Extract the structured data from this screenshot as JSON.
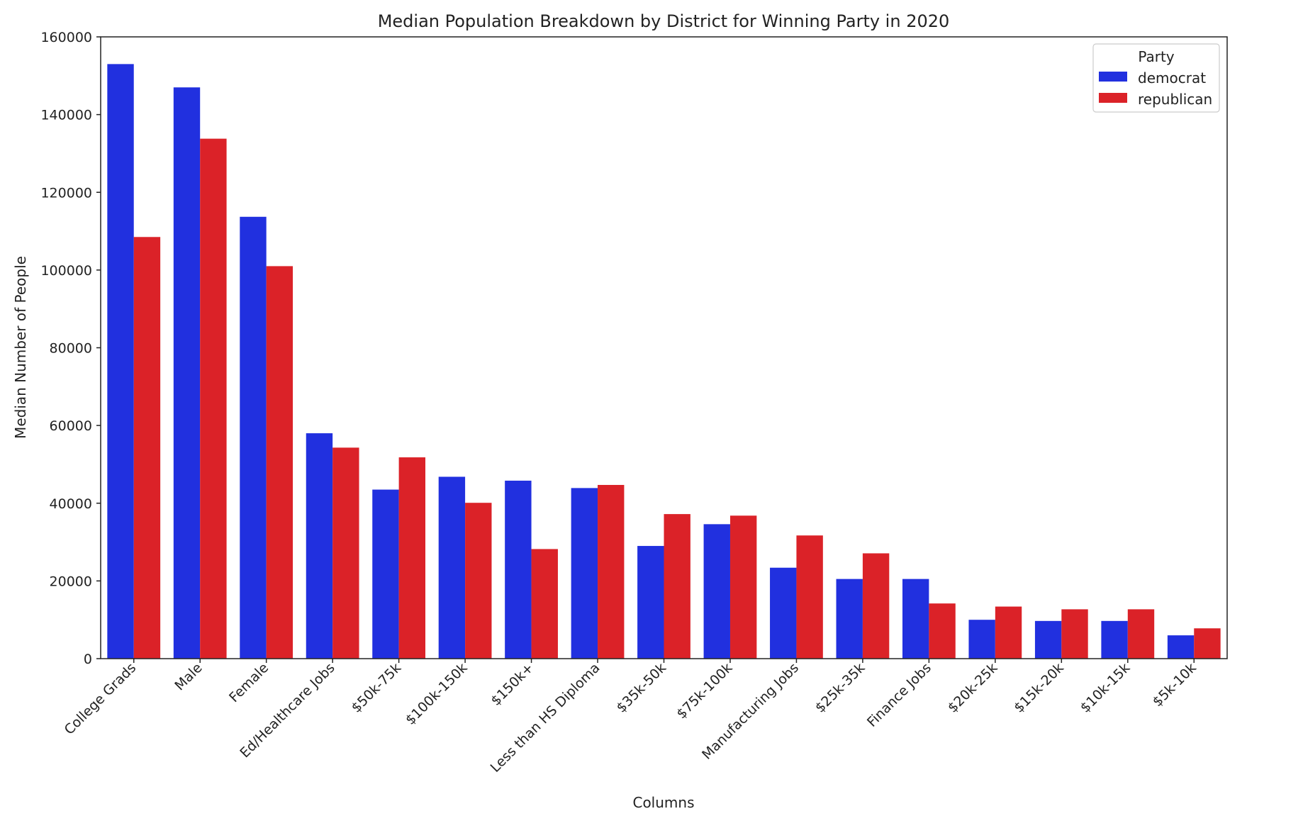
{
  "chart_data": {
    "type": "bar",
    "title": "Median Population Breakdown by District for Winning Party in 2020",
    "xlabel": "Columns",
    "ylabel": "Median Number of People",
    "ylim": [
      0,
      160000
    ],
    "yticks": [
      0,
      20000,
      40000,
      60000,
      80000,
      100000,
      120000,
      140000,
      160000
    ],
    "grid": false,
    "legend": {
      "title": "Party",
      "position": "top-right"
    },
    "categories": [
      "College Grads",
      "Male",
      "Female",
      "Ed/Healthcare Jobs",
      "$50k-75k",
      "$100k-150k",
      "$150k+",
      "Less than HS Diploma",
      "$35k-50k",
      "$75k-100k",
      "Manufacturing Jobs",
      "$25k-35k",
      "Finance Jobs",
      "$20k-25k",
      "$15k-20k",
      "$10k-15k",
      "$5k-10k"
    ],
    "series": [
      {
        "name": "democrat",
        "color": "#2130df",
        "values": [
          153000,
          147000,
          113700,
          58000,
          43500,
          46800,
          45800,
          43900,
          29000,
          34600,
          23400,
          20500,
          20500,
          10000,
          9700,
          9700,
          6000
        ]
      },
      {
        "name": "republican",
        "color": "#db2228",
        "values": [
          108500,
          133800,
          101000,
          54300,
          51800,
          40100,
          28200,
          44700,
          37200,
          36800,
          31700,
          27100,
          14200,
          13400,
          12700,
          12700,
          7800
        ]
      }
    ]
  }
}
